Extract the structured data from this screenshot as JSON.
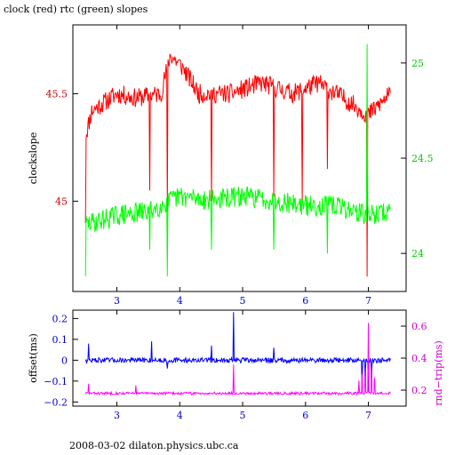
{
  "title": "clock (red) rtc (green) slopes",
  "footer": "2008-03-02  dilaton.physics.ubc.ca",
  "chart_data": [
    {
      "type": "line",
      "name": "top-panel",
      "xlim": [
        2.3,
        7.6
      ],
      "x_ticks": [
        3,
        4,
        5,
        6,
        7
      ],
      "left_axis": {
        "label": "clockslope",
        "ylim": [
          44.58,
          45.82
        ],
        "ticks": [
          45,
          45.5
        ],
        "tick_labels": [
          "45",
          "45.5"
        ],
        "color": "#cc0000"
      },
      "right_axis": {
        "label": "",
        "ylim": [
          23.8,
          25.2
        ],
        "ticks": [
          24,
          24.5,
          25
        ],
        "tick_labels": [
          "24",
          "24.5",
          "25"
        ],
        "color": "#00cc00"
      },
      "series": [
        {
          "color": "#ff0000",
          "axis": "left",
          "x_range": [
            2.5,
            7.35
          ],
          "n_points": 485,
          "baseline": 45.45,
          "noise": 0.045,
          "seed": 11,
          "knots": [
            [
              2.5,
              45.3
            ],
            [
              2.6,
              45.42
            ],
            [
              3.0,
              45.5
            ],
            [
              3.3,
              45.48
            ],
            [
              3.7,
              45.5
            ],
            [
              3.85,
              45.68
            ],
            [
              4.05,
              45.62
            ],
            [
              4.3,
              45.5
            ],
            [
              4.8,
              45.5
            ],
            [
              5.3,
              45.55
            ],
            [
              5.8,
              45.5
            ],
            [
              6.2,
              45.55
            ],
            [
              6.6,
              45.48
            ],
            [
              7.0,
              45.4
            ],
            [
              7.35,
              45.5
            ]
          ],
          "spikes": [
            [
              2.5,
              44.9
            ],
            [
              3.52,
              45.05
            ],
            [
              3.8,
              44.95
            ],
            [
              4.5,
              45.0
            ],
            [
              5.5,
              45.02
            ],
            [
              5.95,
              45.0
            ],
            [
              6.35,
              45.15
            ],
            [
              6.98,
              44.65
            ]
          ]
        },
        {
          "color": "#00ff00",
          "axis": "right",
          "x_range": [
            2.5,
            7.35
          ],
          "n_points": 485,
          "baseline": 24.22,
          "noise": 0.055,
          "seed": 29,
          "knots": [
            [
              2.5,
              24.15
            ],
            [
              3.0,
              24.2
            ],
            [
              3.5,
              24.22
            ],
            [
              4.0,
              24.3
            ],
            [
              4.5,
              24.28
            ],
            [
              5.0,
              24.3
            ],
            [
              5.5,
              24.28
            ],
            [
              6.0,
              24.25
            ],
            [
              6.5,
              24.25
            ],
            [
              7.0,
              24.2
            ],
            [
              7.35,
              24.22
            ]
          ],
          "spikes": [
            [
              2.5,
              23.88
            ],
            [
              3.52,
              24.02
            ],
            [
              3.8,
              23.88
            ],
            [
              4.5,
              24.02
            ],
            [
              5.5,
              24.02
            ],
            [
              6.35,
              24.0
            ],
            [
              6.98,
              25.1
            ]
          ]
        }
      ]
    },
    {
      "type": "line",
      "name": "bottom-panel",
      "xlim": [
        2.3,
        7.6
      ],
      "x_ticks": [
        3,
        4,
        5,
        6,
        7
      ],
      "left_axis": {
        "label": "offset(ms)",
        "ylim": [
          -0.22,
          0.24
        ],
        "ticks": [
          -0.2,
          -0.1,
          0,
          0.1,
          0.2
        ],
        "tick_labels": [
          "−0.2",
          "−0.1",
          "0",
          "0.1",
          "0.2"
        ],
        "color": "#0000cc"
      },
      "right_axis": {
        "label": "rnd−trip(ms)",
        "ylim": [
          0.1,
          0.7
        ],
        "ticks": [
          0.2,
          0.4,
          0.6
        ],
        "tick_labels": [
          "0.2",
          "0.4",
          "0.6"
        ],
        "color": "#cc00cc"
      },
      "series": [
        {
          "color": "#0000ff",
          "axis": "left",
          "x_range": [
            2.5,
            7.35
          ],
          "n_points": 485,
          "baseline": 0.0,
          "noise": 0.012,
          "seed": 47,
          "knots": [
            [
              2.5,
              0.0
            ],
            [
              7.35,
              0.0
            ]
          ],
          "spikes": [
            [
              2.55,
              0.08
            ],
            [
              3.55,
              0.09
            ],
            [
              3.8,
              -0.04
            ],
            [
              4.5,
              0.07
            ],
            [
              4.85,
              0.23
            ],
            [
              5.5,
              0.06
            ],
            [
              6.9,
              -0.12
            ],
            [
              6.95,
              -0.13
            ],
            [
              7.0,
              -0.15
            ],
            [
              7.05,
              -0.12
            ]
          ]
        },
        {
          "color": "#ff00ff",
          "axis": "right",
          "x_range": [
            2.5,
            7.35
          ],
          "n_points": 485,
          "baseline": 0.18,
          "noise": 0.008,
          "seed": 83,
          "knots": [
            [
              2.5,
              0.18
            ],
            [
              7.35,
              0.18
            ]
          ],
          "spikes": [
            [
              2.55,
              0.24
            ],
            [
              3.3,
              0.23
            ],
            [
              4.85,
              0.36
            ],
            [
              6.85,
              0.26
            ],
            [
              6.9,
              0.3
            ],
            [
              6.95,
              0.34
            ],
            [
              7.0,
              0.62
            ],
            [
              7.05,
              0.35
            ],
            [
              7.1,
              0.28
            ]
          ]
        }
      ]
    }
  ]
}
